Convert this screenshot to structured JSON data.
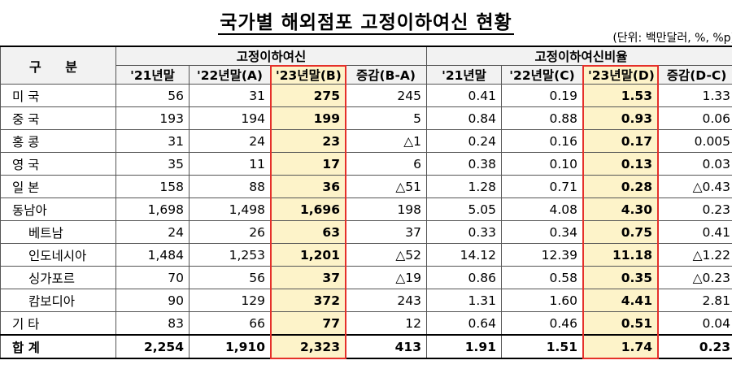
{
  "title": "국가별 해외점포 고정이하여신 현황",
  "unit_note": "(단위: 백만달러, %, %p)",
  "header": {
    "gubun": "구 분",
    "group_loans": "고정이하여신",
    "group_ratio": "고정이하여신비율",
    "cols_loans": [
      "'21년말",
      "'22년말(A)",
      "'23년말(B)",
      "증감(B-A)"
    ],
    "cols_ratio": [
      "'21년말",
      "'22년말(C)",
      "'23년말(D)",
      "증감(D-C)"
    ]
  },
  "rows": [
    {
      "label": "미  국",
      "sub": false,
      "loans": [
        "56",
        "31",
        "275",
        "245"
      ],
      "ratio": [
        "0.41",
        "0.19",
        "1.53",
        "1.33"
      ]
    },
    {
      "label": "중  국",
      "sub": false,
      "loans": [
        "193",
        "194",
        "199",
        "5"
      ],
      "ratio": [
        "0.84",
        "0.88",
        "0.93",
        "0.06"
      ]
    },
    {
      "label": "홍  콩",
      "sub": false,
      "loans": [
        "31",
        "24",
        "23",
        "△1"
      ],
      "ratio": [
        "0.24",
        "0.16",
        "0.17",
        "0.005"
      ]
    },
    {
      "label": "영  국",
      "sub": false,
      "loans": [
        "35",
        "11",
        "17",
        "6"
      ],
      "ratio": [
        "0.38",
        "0.10",
        "0.13",
        "0.03"
      ]
    },
    {
      "label": "일  본",
      "sub": false,
      "loans": [
        "158",
        "88",
        "36",
        "△51"
      ],
      "ratio": [
        "1.28",
        "0.71",
        "0.28",
        "△0.43"
      ]
    },
    {
      "label": "동남아",
      "sub": false,
      "loans": [
        "1,698",
        "1,498",
        "1,696",
        "198"
      ],
      "ratio": [
        "5.05",
        "4.08",
        "4.30",
        "0.23"
      ]
    },
    {
      "label": "베트남",
      "sub": true,
      "loans": [
        "24",
        "26",
        "63",
        "37"
      ],
      "ratio": [
        "0.33",
        "0.34",
        "0.75",
        "0.41"
      ]
    },
    {
      "label": "인도네시아",
      "sub": true,
      "loans": [
        "1,484",
        "1,253",
        "1,201",
        "△52"
      ],
      "ratio": [
        "14.12",
        "12.39",
        "11.18",
        "△1.22"
      ]
    },
    {
      "label": "싱가포르",
      "sub": true,
      "loans": [
        "70",
        "56",
        "37",
        "△19"
      ],
      "ratio": [
        "0.86",
        "0.58",
        "0.35",
        "△0.23"
      ]
    },
    {
      "label": "캄보디아",
      "sub": true,
      "loans": [
        "90",
        "129",
        "372",
        "243"
      ],
      "ratio": [
        "1.31",
        "1.60",
        "4.41",
        "2.81"
      ]
    },
    {
      "label": "기  타",
      "sub": false,
      "loans": [
        "83",
        "66",
        "77",
        "12"
      ],
      "ratio": [
        "0.64",
        "0.46",
        "0.51",
        "0.04"
      ]
    }
  ],
  "total": {
    "label": "합  계",
    "loans": [
      "2,254",
      "1,910",
      "2,323",
      "413"
    ],
    "ratio": [
      "1.91",
      "1.51",
      "1.74",
      "0.23"
    ]
  }
}
